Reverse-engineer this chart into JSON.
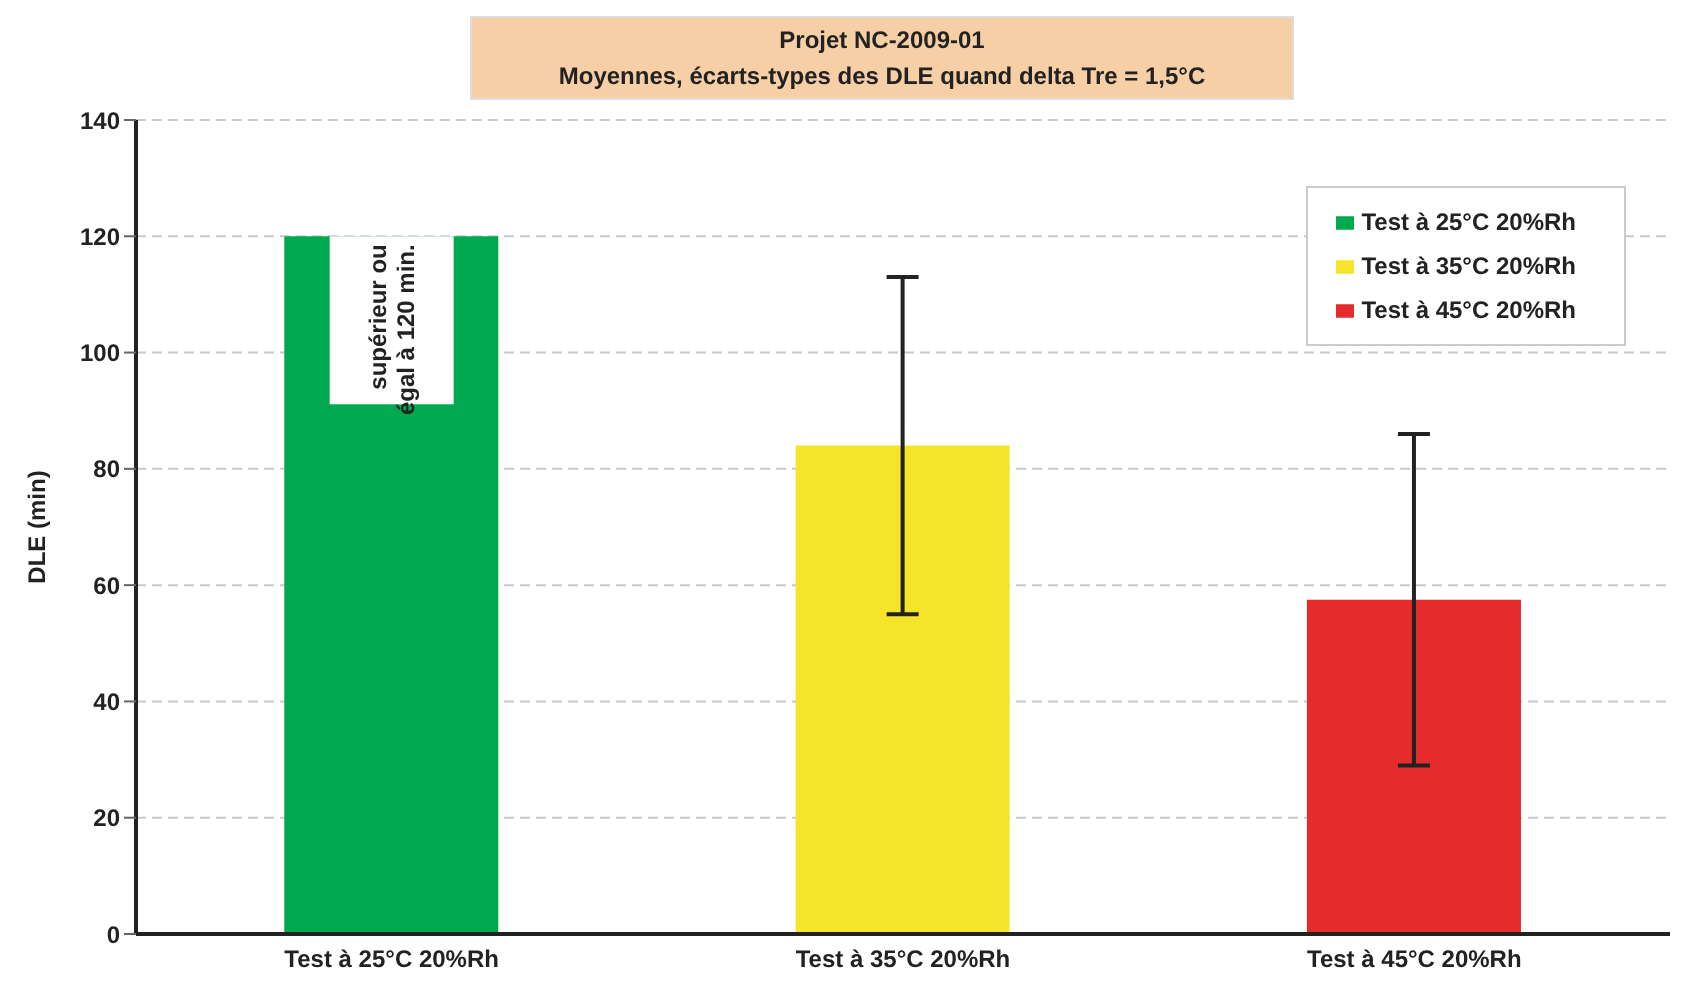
{
  "chart_data": {
    "type": "bar",
    "title": "Projet NC-2009-01",
    "subtitle": "Moyennes, écarts-types des DLE quand delta Tre = 1,5°C",
    "ylabel": "DLE (min)",
    "categories": [
      "Test à 25°C 20%Rh",
      "Test à 35°C 20%Rh",
      "Test à 45°C 20%Rh"
    ],
    "series": [
      {
        "name": "Test à 25°C 20%Rh",
        "color": "#00a94f",
        "values": [
          120,
          null,
          null
        ]
      },
      {
        "name": "Test à 35°C 20%Rh",
        "color": "#f5e52a",
        "values": [
          null,
          84,
          null
        ],
        "errors": [
          null,
          29,
          null
        ]
      },
      {
        "name": "Test à 45°C 20%Rh",
        "color": "#e52b2b",
        "values": [
          null,
          null,
          57.5
        ],
        "errors": [
          null,
          null,
          28.5
        ]
      }
    ],
    "stacked": true,
    "ylim": [
      0,
      140
    ],
    "yticks": [
      0,
      20,
      40,
      60,
      80,
      100,
      120,
      140
    ],
    "grid": "y",
    "legend": "top right",
    "annotations": [
      {
        "text": "supérieur ou égal à 120 min.",
        "x": "Test à 25°C 20%Rh",
        "y": 120
      }
    ]
  }
}
